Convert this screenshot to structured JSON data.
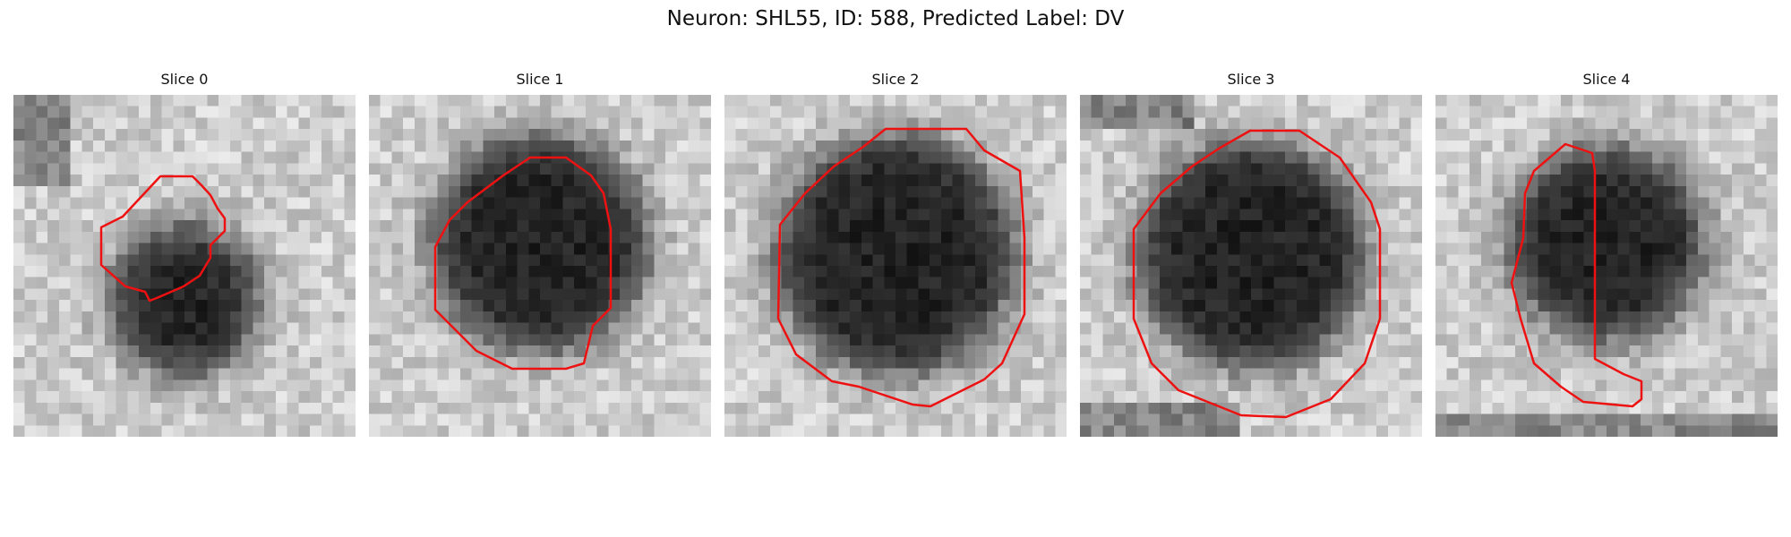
{
  "figure": {
    "title": "Neuron: SHL55, ID: 588, Predicted Label: DV",
    "outline_color": "#ee1111"
  },
  "slices": [
    {
      "title": "Slice 0"
    },
    {
      "title": "Slice 1"
    },
    {
      "title": "Slice 2"
    },
    {
      "title": "Slice 3"
    },
    {
      "title": "Slice 4"
    }
  ]
}
